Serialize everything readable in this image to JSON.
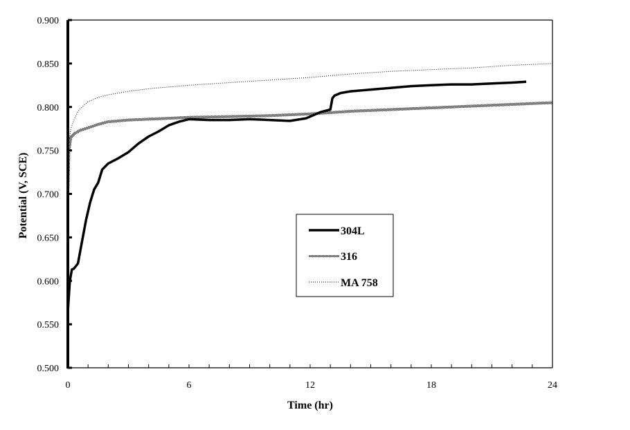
{
  "chart_data": {
    "type": "line",
    "title": "",
    "xlabel": "Time (hr)",
    "ylabel": "Potential (V, SCE)",
    "xlim": [
      0,
      24
    ],
    "ylim": [
      0.5,
      0.9
    ],
    "x_ticks": [
      "0",
      "6",
      "12",
      "18",
      "24"
    ],
    "y_ticks": [
      "0.500",
      "0.550",
      "0.600",
      "0.650",
      "0.700",
      "0.750",
      "0.800",
      "0.850",
      "0.900"
    ],
    "x_minor_tick_step": 1,
    "grid": false,
    "legend_position": "center",
    "series": [
      {
        "name": "304L",
        "style": "solid-thick",
        "color": "#000000",
        "x": [
          0,
          0.1,
          0.2,
          0.3,
          0.5,
          0.7,
          0.9,
          1.1,
          1.3,
          1.5,
          1.7,
          2.0,
          2.5,
          3.0,
          3.5,
          4.0,
          4.5,
          5.0,
          5.5,
          6.0,
          7.0,
          8.0,
          9.0,
          10.0,
          11.0,
          11.8,
          12.5,
          13.0,
          13.1,
          13.2,
          13.5,
          14.0,
          15.0,
          16.0,
          17.0,
          18.0,
          19.0,
          20.0,
          21.0,
          22.0,
          22.7
        ],
        "y": [
          0.565,
          0.6,
          0.613,
          0.614,
          0.62,
          0.645,
          0.67,
          0.69,
          0.705,
          0.713,
          0.728,
          0.735,
          0.741,
          0.748,
          0.758,
          0.766,
          0.772,
          0.779,
          0.783,
          0.786,
          0.785,
          0.785,
          0.786,
          0.785,
          0.784,
          0.787,
          0.794,
          0.797,
          0.81,
          0.813,
          0.816,
          0.818,
          0.82,
          0.822,
          0.824,
          0.825,
          0.826,
          0.826,
          0.827,
          0.828,
          0.829
        ]
      },
      {
        "name": "316",
        "style": "dense-dotted",
        "color": "#7a7a7a",
        "x": [
          0,
          0.05,
          0.15,
          0.3,
          0.6,
          1.0,
          1.5,
          2.0,
          3.0,
          4.0,
          5.0,
          6.0,
          8.0,
          10.0,
          12.0,
          14.0,
          16.0,
          18.0,
          20.0,
          22.0,
          24.0
        ],
        "y": [
          0.7,
          0.75,
          0.765,
          0.769,
          0.773,
          0.776,
          0.78,
          0.783,
          0.785,
          0.786,
          0.787,
          0.788,
          0.789,
          0.79,
          0.792,
          0.795,
          0.797,
          0.799,
          0.801,
          0.803,
          0.805
        ]
      },
      {
        "name": "MA 758",
        "style": "sparse-dotted",
        "color": "#888888",
        "x": [
          0,
          0.05,
          0.15,
          0.3,
          0.5,
          0.8,
          1.0,
          1.5,
          2.0,
          3.0,
          4.0,
          5.0,
          6.0,
          8.0,
          10.0,
          12.0,
          14.0,
          16.0,
          18.0,
          20.0,
          22.0,
          24.0
        ],
        "y": [
          0.695,
          0.76,
          0.775,
          0.785,
          0.795,
          0.802,
          0.806,
          0.811,
          0.814,
          0.818,
          0.821,
          0.823,
          0.825,
          0.828,
          0.831,
          0.834,
          0.838,
          0.841,
          0.843,
          0.845,
          0.848,
          0.85
        ]
      }
    ]
  },
  "legend": {
    "items": [
      {
        "label": "304L"
      },
      {
        "label": "316"
      },
      {
        "label": "MA 758"
      }
    ]
  },
  "axes": {
    "x_title": "Time (hr)",
    "y_title": "Potential (V, SCE)"
  }
}
